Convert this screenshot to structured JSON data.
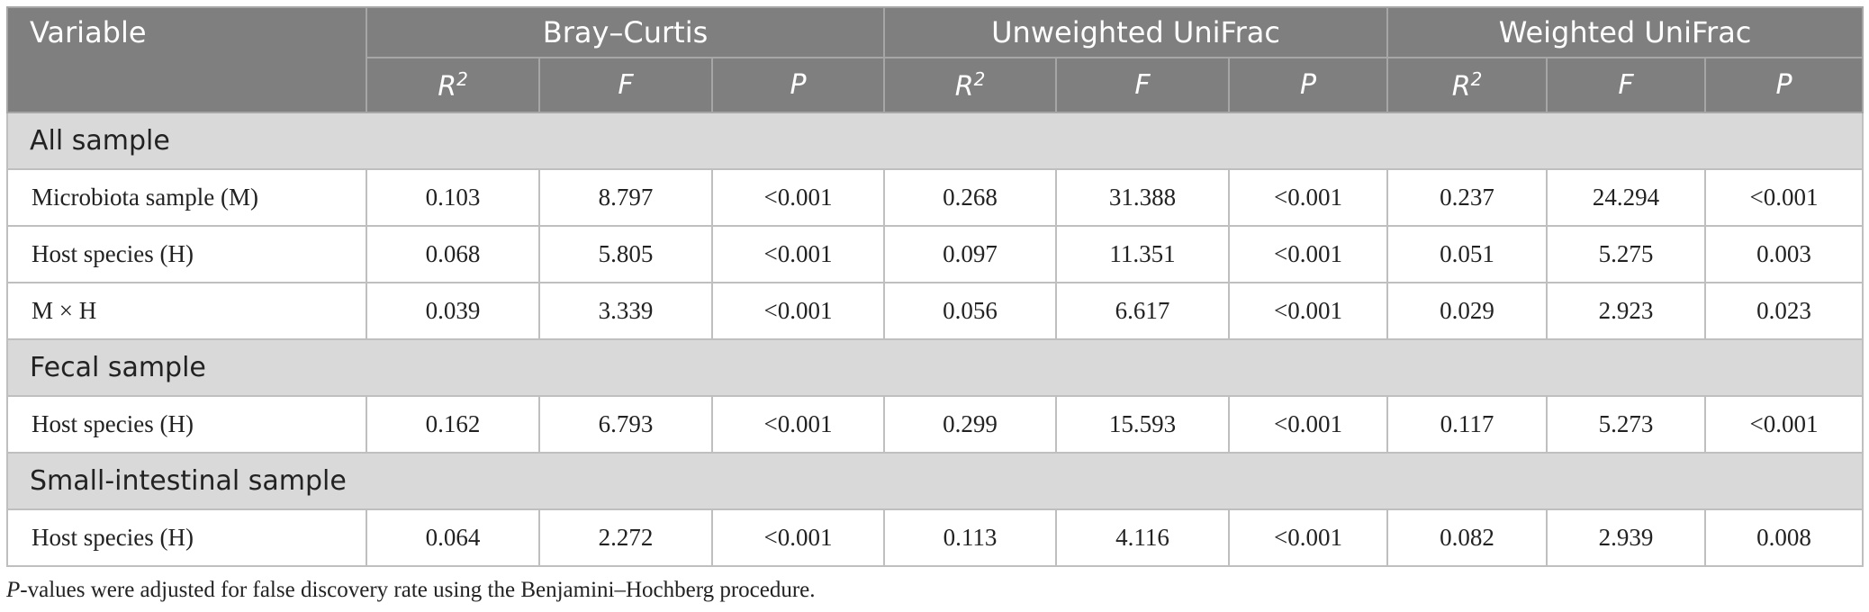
{
  "table": {
    "corner": "Variable",
    "groups": [
      "Bray–Curtis",
      "Unweighted UniFrac",
      "Weighted UniFrac"
    ],
    "subheaders": [
      {
        "base": "R",
        "sup": "2"
      },
      {
        "base": "F"
      },
      {
        "base": "P"
      },
      {
        "base": "R",
        "sup": "2"
      },
      {
        "base": "F"
      },
      {
        "base": "P"
      },
      {
        "base": "R",
        "sup": "2"
      },
      {
        "base": "F"
      },
      {
        "base": "P"
      }
    ],
    "sections": [
      {
        "title": "All sample",
        "rows": [
          [
            "Microbiota sample (M)",
            "0.103",
            "8.797",
            "<0.001",
            "0.268",
            "31.388",
            "<0.001",
            "0.237",
            "24.294",
            "<0.001"
          ],
          [
            "Host species (H)",
            "0.068",
            "5.805",
            "<0.001",
            "0.097",
            "11.351",
            "<0.001",
            "0.051",
            "5.275",
            "0.003"
          ],
          [
            "M × H",
            "0.039",
            "3.339",
            "<0.001",
            "0.056",
            "6.617",
            "<0.001",
            "0.029",
            "2.923",
            "0.023"
          ]
        ]
      },
      {
        "title": "Fecal sample",
        "rows": [
          [
            "Host species (H)",
            "0.162",
            "6.793",
            "<0.001",
            "0.299",
            "15.593",
            "<0.001",
            "0.117",
            "5.273",
            "<0.001"
          ]
        ]
      },
      {
        "title": "Small-intestinal sample",
        "rows": [
          [
            "Host species (H)",
            "0.064",
            "2.272",
            "<0.001",
            "0.113",
            "4.116",
            "<0.001",
            "0.082",
            "2.939",
            "0.008"
          ]
        ]
      }
    ]
  },
  "footnote": {
    "italic": "P",
    "text": "-values were adjusted for false discovery rate using the Benjamini–Hochberg procedure."
  }
}
